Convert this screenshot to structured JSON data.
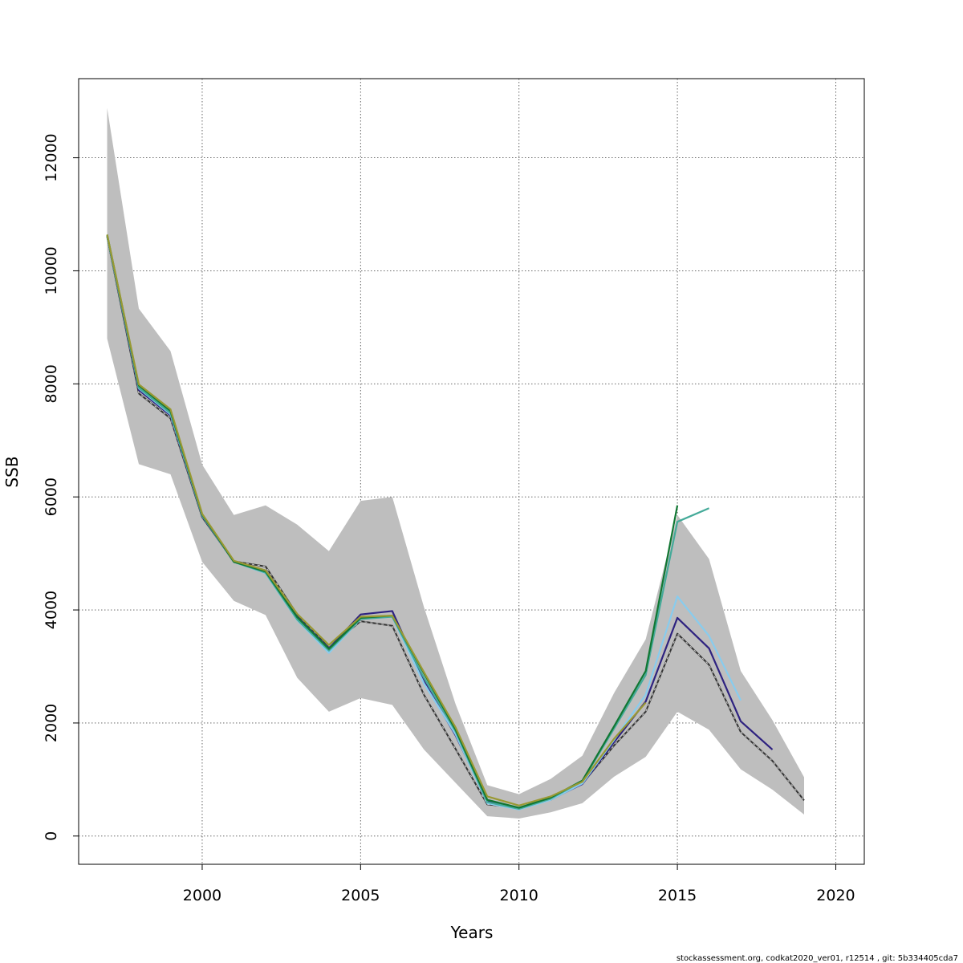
{
  "chart_data": {
    "type": "line",
    "title": "",
    "xlabel": "Years",
    "ylabel": "SSB",
    "xlim": [
      1996.1,
      2020.9
    ],
    "ylim": [
      -500,
      13400
    ],
    "x_ticks": [
      2000,
      2005,
      2010,
      2015,
      2020
    ],
    "y_ticks": [
      0,
      2000,
      4000,
      6000,
      8000,
      10000,
      12000
    ],
    "x_tick_labels": [
      "2000",
      "2005",
      "2010",
      "2015",
      "2020"
    ],
    "y_tick_labels": [
      "0",
      "2000",
      "4000",
      "6000",
      "8000",
      "10000",
      "12000"
    ],
    "grid": true,
    "confidence_band": {
      "color": "#bebebe",
      "x": [
        1997,
        1998,
        1999,
        2000,
        2001,
        2002,
        2003,
        2004,
        2005,
        2006,
        2007,
        2008,
        2009,
        2010,
        2011,
        2012,
        2013,
        2014,
        2015,
        2016,
        2017,
        2018,
        2019
      ],
      "lower": [
        8800,
        6580,
        6400,
        4850,
        4160,
        3910,
        2800,
        2200,
        2440,
        2320,
        1530,
        940,
        350,
        310,
        420,
        580,
        1050,
        1400,
        2200,
        1880,
        1180,
        820,
        380
      ],
      "upper": [
        12880,
        9330,
        8580,
        6570,
        5680,
        5850,
        5510,
        5040,
        5930,
        6000,
        4050,
        2330,
        900,
        740,
        1010,
        1420,
        2530,
        3480,
        5680,
        4900,
        2920,
        2050,
        1040
      ]
    },
    "series": [
      {
        "color": "#333333",
        "dashed": true,
        "x": [
          1997,
          1998,
          1999,
          2000,
          2001,
          2002,
          2003,
          2004,
          2005,
          2006,
          2007,
          2008,
          2009,
          2010,
          2011,
          2012,
          2013,
          2014,
          2015,
          2016,
          2017,
          2018,
          2019
        ],
        "values": [
          10600,
          7830,
          7390,
          5640,
          4860,
          4770,
          3920,
          3330,
          3800,
          3720,
          2500,
          1540,
          560,
          500,
          640,
          930,
          1600,
          2200,
          3580,
          3030,
          1840,
          1330,
          630
        ]
      },
      {
        "color": "#2e2280",
        "x": [
          1997,
          1998,
          1999,
          2000,
          2001,
          2002,
          2003,
          2004,
          2005,
          2006,
          2007,
          2008,
          2009,
          2010,
          2011,
          2012,
          2013,
          2014,
          2015,
          2016,
          2017,
          2018
        ],
        "values": [
          10620,
          7890,
          7440,
          5660,
          4850,
          4700,
          3880,
          3320,
          3920,
          3980,
          2740,
          1780,
          620,
          480,
          650,
          920,
          1660,
          2380,
          3860,
          3320,
          2030,
          1530
        ]
      },
      {
        "color": "#88ccee",
        "x": [
          1997,
          1998,
          1999,
          2000,
          2001,
          2002,
          2003,
          2004,
          2005,
          2006,
          2007,
          2008,
          2009,
          2010,
          2011,
          2012,
          2013,
          2014,
          2015,
          2016,
          2017
        ],
        "values": [
          10620,
          7920,
          7460,
          5670,
          4850,
          4650,
          3820,
          3240,
          3840,
          3880,
          2700,
          1800,
          580,
          470,
          640,
          930,
          1700,
          2500,
          4240,
          3540,
          2400
        ]
      },
      {
        "color": "#44aa99",
        "x": [
          1997,
          1998,
          1999,
          2000,
          2001,
          2002,
          2003,
          2004,
          2005,
          2006,
          2007,
          2008,
          2009,
          2010,
          2011,
          2012,
          2013,
          2014,
          2015,
          2016
        ],
        "values": [
          10620,
          7930,
          7480,
          5670,
          4850,
          4660,
          3830,
          3280,
          3840,
          3880,
          2800,
          1850,
          600,
          480,
          660,
          970,
          1900,
          2850,
          5560,
          5800
        ]
      },
      {
        "color": "#117733",
        "x": [
          1997,
          1998,
          1999,
          2000,
          2001,
          2002,
          2003,
          2004,
          2005,
          2006,
          2007,
          2008,
          2009,
          2010,
          2011,
          2012,
          2013,
          2014,
          2015
        ],
        "values": [
          10640,
          7970,
          7520,
          5690,
          4850,
          4680,
          3870,
          3310,
          3860,
          3900,
          2880,
          1880,
          640,
          500,
          680,
          980,
          1940,
          2920,
          5850
        ]
      },
      {
        "color": "#999933",
        "x": [
          1997,
          1998,
          1999,
          2000,
          2001,
          2002,
          2003,
          2004,
          2005,
          2006,
          2007,
          2008,
          2009,
          2010,
          2011,
          2012,
          2013,
          2014
        ],
        "values": [
          10640,
          7990,
          7550,
          5700,
          4870,
          4700,
          3930,
          3380,
          3880,
          3900,
          2900,
          1920,
          700,
          540,
          700,
          960,
          1720,
          2360
        ]
      }
    ]
  },
  "footer": "stockassessment.org, codkat2020_ver01, r12514 , git: 5b334405cda7"
}
